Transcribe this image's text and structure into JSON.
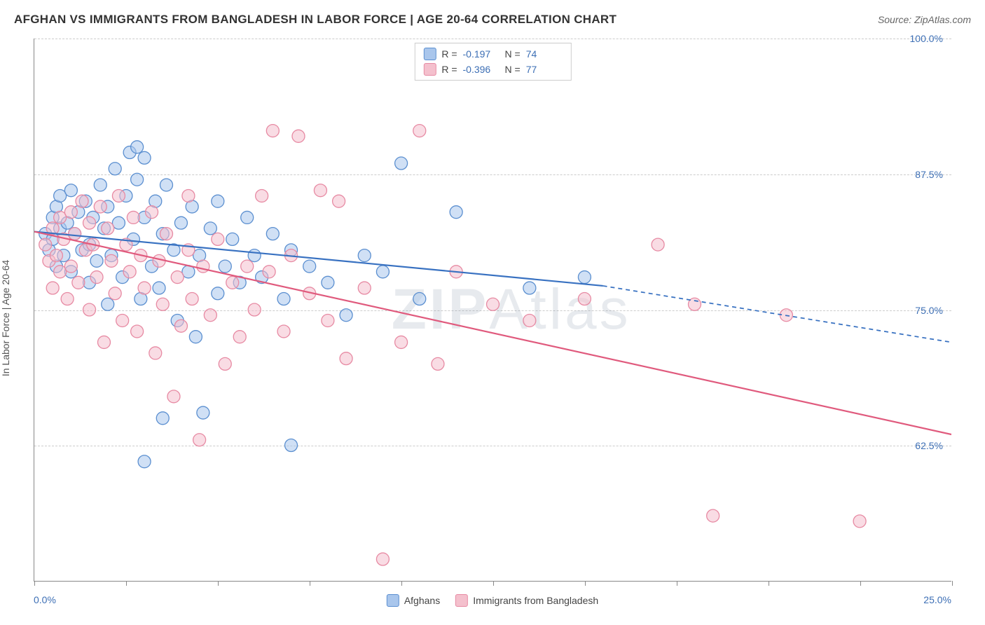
{
  "title": "AFGHAN VS IMMIGRANTS FROM BANGLADESH IN LABOR FORCE | AGE 20-64 CORRELATION CHART",
  "source_label": "Source: ZipAtlas.com",
  "y_axis_label": "In Labor Force | Age 20-64",
  "watermark_bold": "ZIP",
  "watermark_rest": "Atlas",
  "legend_top": {
    "rows": [
      {
        "swatch_fill": "#a9c6ec",
        "swatch_border": "#5b8fd0",
        "r_label": "R =",
        "r_val": "-0.197",
        "n_label": "N =",
        "n_val": "74"
      },
      {
        "swatch_fill": "#f4c0cd",
        "swatch_border": "#e78aa3",
        "r_label": "R =",
        "r_val": "-0.396",
        "n_label": "N =",
        "n_val": "77"
      }
    ]
  },
  "legend_bottom": {
    "items": [
      {
        "swatch_fill": "#a9c6ec",
        "swatch_border": "#5b8fd0",
        "label": "Afghans"
      },
      {
        "swatch_fill": "#f4c0cd",
        "swatch_border": "#e78aa3",
        "label": "Immigrants from Bangladesh"
      }
    ]
  },
  "chart": {
    "type": "scatter",
    "background_color": "#ffffff",
    "xlim": [
      0,
      25
    ],
    "ylim": [
      50,
      100
    ],
    "x_ticks": [
      0,
      2.5,
      5,
      7.5,
      10,
      12.5,
      15,
      17.5,
      20,
      22.5,
      25
    ],
    "y_ticks": [
      62.5,
      75.0,
      87.5,
      100.0
    ],
    "y_tick_labels": [
      "62.5%",
      "75.0%",
      "87.5%",
      "100.0%"
    ],
    "x_origin_label": "0.0%",
    "x_max_label": "25.0%",
    "grid_color": "#cccccc",
    "axis_color": "#888888",
    "tick_label_color": "#3d6fb5",
    "marker_radius": 9,
    "marker_opacity": 0.55,
    "series": [
      {
        "name": "Afghans",
        "fill": "#a9c6ec",
        "stroke": "#5b8fd0",
        "line_color": "#3871c1",
        "line_width": 2.2,
        "points": [
          [
            0.3,
            82.0
          ],
          [
            0.4,
            80.5
          ],
          [
            0.5,
            81.5
          ],
          [
            0.5,
            83.5
          ],
          [
            0.6,
            79.0
          ],
          [
            0.6,
            84.5
          ],
          [
            0.7,
            82.5
          ],
          [
            0.7,
            85.5
          ],
          [
            0.8,
            80.0
          ],
          [
            0.9,
            83.0
          ],
          [
            1.0,
            78.5
          ],
          [
            1.0,
            86.0
          ],
          [
            1.1,
            82.0
          ],
          [
            1.2,
            84.0
          ],
          [
            1.3,
            80.5
          ],
          [
            1.4,
            85.0
          ],
          [
            1.5,
            81.0
          ],
          [
            1.5,
            77.5
          ],
          [
            1.6,
            83.5
          ],
          [
            1.7,
            79.5
          ],
          [
            1.8,
            86.5
          ],
          [
            1.9,
            82.5
          ],
          [
            2.0,
            84.5
          ],
          [
            2.0,
            75.5
          ],
          [
            2.1,
            80.0
          ],
          [
            2.2,
            88.0
          ],
          [
            2.3,
            83.0
          ],
          [
            2.4,
            78.0
          ],
          [
            2.5,
            85.5
          ],
          [
            2.6,
            89.5
          ],
          [
            2.7,
            81.5
          ],
          [
            2.8,
            87.0
          ],
          [
            2.8,
            90.0
          ],
          [
            2.9,
            76.0
          ],
          [
            3.0,
            83.5
          ],
          [
            3.0,
            89.0
          ],
          [
            3.2,
            79.0
          ],
          [
            3.3,
            85.0
          ],
          [
            3.4,
            77.0
          ],
          [
            3.5,
            82.0
          ],
          [
            3.5,
            65.0
          ],
          [
            3.6,
            86.5
          ],
          [
            3.8,
            80.5
          ],
          [
            3.9,
            74.0
          ],
          [
            4.0,
            83.0
          ],
          [
            4.2,
            78.5
          ],
          [
            4.3,
            84.5
          ],
          [
            4.4,
            72.5
          ],
          [
            4.5,
            80.0
          ],
          [
            4.6,
            65.5
          ],
          [
            4.8,
            82.5
          ],
          [
            5.0,
            76.5
          ],
          [
            5.0,
            85.0
          ],
          [
            5.2,
            79.0
          ],
          [
            5.4,
            81.5
          ],
          [
            5.6,
            77.5
          ],
          [
            5.8,
            83.5
          ],
          [
            6.0,
            80.0
          ],
          [
            6.2,
            78.0
          ],
          [
            6.5,
            82.0
          ],
          [
            6.8,
            76.0
          ],
          [
            7.0,
            80.5
          ],
          [
            7.0,
            62.5
          ],
          [
            7.5,
            79.0
          ],
          [
            8.0,
            77.5
          ],
          [
            8.5,
            74.5
          ],
          [
            9.0,
            80.0
          ],
          [
            9.5,
            78.5
          ],
          [
            10.0,
            88.5
          ],
          [
            10.5,
            76.0
          ],
          [
            11.5,
            84.0
          ],
          [
            13.5,
            77.0
          ],
          [
            15.0,
            78.0
          ],
          [
            3.0,
            61.0
          ]
        ],
        "trend": {
          "x1": 0,
          "y1": 82.2,
          "x2": 15.5,
          "y2": 77.2,
          "dash_x2": 25,
          "dash_y2": 72.0
        }
      },
      {
        "name": "Immigrants from Bangladesh",
        "fill": "#f4c0cd",
        "stroke": "#e78aa3",
        "line_color": "#e05a7d",
        "line_width": 2.2,
        "points": [
          [
            0.3,
            81.0
          ],
          [
            0.4,
            79.5
          ],
          [
            0.5,
            82.5
          ],
          [
            0.5,
            77.0
          ],
          [
            0.6,
            80.0
          ],
          [
            0.7,
            83.5
          ],
          [
            0.7,
            78.5
          ],
          [
            0.8,
            81.5
          ],
          [
            0.9,
            76.0
          ],
          [
            1.0,
            84.0
          ],
          [
            1.0,
            79.0
          ],
          [
            1.1,
            82.0
          ],
          [
            1.2,
            77.5
          ],
          [
            1.3,
            85.0
          ],
          [
            1.4,
            80.5
          ],
          [
            1.5,
            83.0
          ],
          [
            1.5,
            75.0
          ],
          [
            1.6,
            81.0
          ],
          [
            1.7,
            78.0
          ],
          [
            1.8,
            84.5
          ],
          [
            1.9,
            72.0
          ],
          [
            2.0,
            82.5
          ],
          [
            2.1,
            79.5
          ],
          [
            2.2,
            76.5
          ],
          [
            2.3,
            85.5
          ],
          [
            2.4,
            74.0
          ],
          [
            2.5,
            81.0
          ],
          [
            2.6,
            78.5
          ],
          [
            2.7,
            83.5
          ],
          [
            2.8,
            73.0
          ],
          [
            2.9,
            80.0
          ],
          [
            3.0,
            77.0
          ],
          [
            3.2,
            84.0
          ],
          [
            3.3,
            71.0
          ],
          [
            3.4,
            79.5
          ],
          [
            3.5,
            75.5
          ],
          [
            3.6,
            82.0
          ],
          [
            3.8,
            67.0
          ],
          [
            3.9,
            78.0
          ],
          [
            4.0,
            73.5
          ],
          [
            4.2,
            80.5
          ],
          [
            4.3,
            76.0
          ],
          [
            4.5,
            63.0
          ],
          [
            4.6,
            79.0
          ],
          [
            4.8,
            74.5
          ],
          [
            5.0,
            81.5
          ],
          [
            5.2,
            70.0
          ],
          [
            5.4,
            77.5
          ],
          [
            5.6,
            72.5
          ],
          [
            5.8,
            79.0
          ],
          [
            6.0,
            75.0
          ],
          [
            6.2,
            85.5
          ],
          [
            6.4,
            78.5
          ],
          [
            6.8,
            73.0
          ],
          [
            7.0,
            80.0
          ],
          [
            7.2,
            91.0
          ],
          [
            7.5,
            76.5
          ],
          [
            7.8,
            86.0
          ],
          [
            8.0,
            74.0
          ],
          [
            8.3,
            85.0
          ],
          [
            8.5,
            70.5
          ],
          [
            9.0,
            77.0
          ],
          [
            9.5,
            52.0
          ],
          [
            10.0,
            72.0
          ],
          [
            10.5,
            91.5
          ],
          [
            11.0,
            70.0
          ],
          [
            11.5,
            78.5
          ],
          [
            12.5,
            75.5
          ],
          [
            13.5,
            74.0
          ],
          [
            15.0,
            76.0
          ],
          [
            17.0,
            81.0
          ],
          [
            18.0,
            75.5
          ],
          [
            18.5,
            56.0
          ],
          [
            20.5,
            74.5
          ],
          [
            22.5,
            55.5
          ],
          [
            4.2,
            85.5
          ],
          [
            6.5,
            91.5
          ]
        ],
        "trend": {
          "x1": 0,
          "y1": 82.2,
          "x2": 25,
          "y2": 63.5
        }
      }
    ]
  }
}
